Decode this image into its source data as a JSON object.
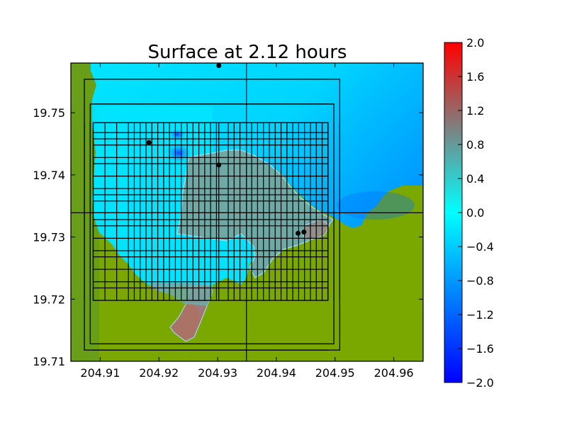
{
  "chart_data": {
    "type": "heatmap",
    "title": "Surface at 2.12 hours",
    "xlabel": "",
    "ylabel": "",
    "xlim": [
      204.905,
      204.965
    ],
    "ylim": [
      19.71,
      19.758
    ],
    "x_ticks": [
      {
        "value": 204.91,
        "label": "204.91"
      },
      {
        "value": 204.92,
        "label": "204.92"
      },
      {
        "value": 204.93,
        "label": "204.93"
      },
      {
        "value": 204.94,
        "label": "204.94"
      },
      {
        "value": 204.95,
        "label": "204.95"
      },
      {
        "value": 204.96,
        "label": "204.96"
      }
    ],
    "y_ticks": [
      {
        "value": 19.71,
        "label": "19.71"
      },
      {
        "value": 19.72,
        "label": "19.72"
      },
      {
        "value": 19.73,
        "label": "19.73"
      },
      {
        "value": 19.74,
        "label": "19.74"
      },
      {
        "value": 19.75,
        "label": "19.75"
      }
    ],
    "colorbar": {
      "vmin": -2.0,
      "vmax": 2.0,
      "colors": [
        "#0000ff",
        "#00ffff",
        "#ff0000"
      ],
      "ticks": [
        {
          "value": 2.0,
          "label": "2.0"
        },
        {
          "value": 1.6,
          "label": "1.6"
        },
        {
          "value": 1.2,
          "label": "1.2"
        },
        {
          "value": 0.8,
          "label": "0.8"
        },
        {
          "value": 0.4,
          "label": "0.4"
        },
        {
          "value": 0.0,
          "label": "0.0"
        },
        {
          "value": -0.4,
          "label": "−0.4"
        },
        {
          "value": -0.8,
          "label": "−0.8"
        },
        {
          "value": -1.2,
          "label": "−1.2"
        },
        {
          "value": -1.6,
          "label": "−1.6"
        },
        {
          "value": -2.0,
          "label": "−2.0"
        }
      ]
    },
    "land_color": "#7aa800",
    "shallow_water_color": "#6fa9a6",
    "gauges": [
      {
        "x": 204.9302,
        "y": 19.7576
      },
      {
        "x": 204.9183,
        "y": 19.7452
      },
      {
        "x": 204.9302,
        "y": 19.7416
      },
      {
        "x": 204.9437,
        "y": 19.7306
      },
      {
        "x": 204.9447,
        "y": 19.7308
      }
    ],
    "crosshair": {
      "x": 204.9349,
      "y": 19.7339
    },
    "patch_boxes": [
      {
        "x0": 204.9073,
        "x1": 204.9508,
        "y0": 19.7118,
        "y1": 19.7554
      },
      {
        "x0": 204.9083,
        "x1": 204.9498,
        "y0": 19.7128,
        "y1": 19.7514
      },
      {
        "x0": 204.9088,
        "x1": 204.9488,
        "y0": 19.7198,
        "y1": 19.7484
      }
    ],
    "grid_x_lines": [
      204.9073,
      204.9083,
      204.9088,
      204.9108,
      204.9128,
      204.9148,
      204.9158,
      204.9168,
      204.9178,
      204.9188,
      204.9198,
      204.9208,
      204.9218,
      204.9228,
      204.9238,
      204.9248,
      204.9258,
      204.9268,
      204.9278,
      204.9288,
      204.9298,
      204.9302,
      204.9318,
      204.9328,
      204.9338,
      204.9349,
      204.9358,
      204.9368,
      204.9378,
      204.9388,
      204.9398,
      204.9408,
      204.9418,
      204.9428,
      204.9438,
      204.9448,
      204.9458,
      204.9468,
      204.9478,
      204.9488,
      204.9498,
      204.9508
    ],
    "grid_y_lines": [
      19.7118,
      19.7128,
      19.7198,
      19.7218,
      19.7228,
      19.7248,
      19.7268,
      19.7278,
      19.7298,
      19.7318,
      19.7328,
      19.7339,
      19.7358,
      19.7368,
      19.7378,
      19.7398,
      19.7418,
      19.7428,
      19.7448,
      19.7458,
      19.7468,
      19.7484,
      19.7514,
      19.7554
    ]
  }
}
